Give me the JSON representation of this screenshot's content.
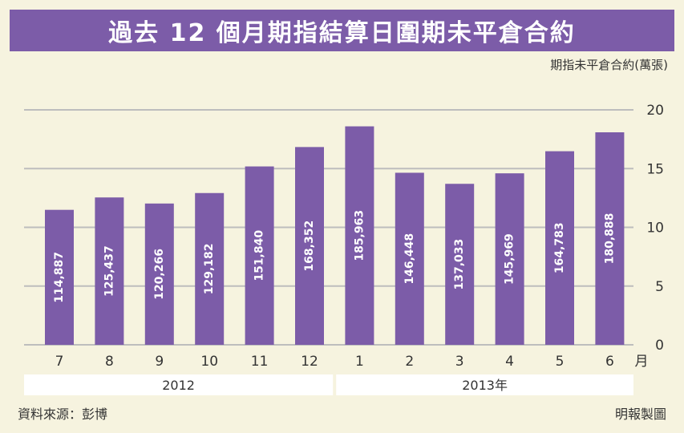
{
  "title": "過去 12 個月期指結算日圍期未平倉合約",
  "unit_label": "期指未平倉合約(萬張)",
  "source": "資料來源：彭博",
  "credit": "明報製圖",
  "colors": {
    "bar": "#7c5ca8",
    "title_bg": "#7c5ca8",
    "background": "#f6f3df",
    "year_band": "#ffffff"
  },
  "chart_data": {
    "type": "bar",
    "categories": [
      "7",
      "8",
      "9",
      "10",
      "11",
      "12",
      "1",
      "2",
      "3",
      "4",
      "5",
      "6"
    ],
    "month_unit": "月",
    "values": [
      11.4887,
      12.5437,
      12.0266,
      12.9182,
      15.184,
      16.8352,
      18.5963,
      14.6448,
      13.7033,
      14.5969,
      16.4783,
      18.0888
    ],
    "data_labels": [
      "114,887",
      "125,437",
      "120,266",
      "129,182",
      "151,840",
      "168,352",
      "185,963",
      "146,448",
      "137,033",
      "145,969",
      "164,783",
      "180,888"
    ],
    "ylim": [
      0,
      20
    ],
    "yticks": [
      0,
      5,
      10,
      15,
      20
    ],
    "grid": true,
    "years": [
      {
        "label": "2012",
        "from": 0,
        "to": 5
      },
      {
        "label": "2013年",
        "from": 6,
        "to": 11
      }
    ]
  }
}
